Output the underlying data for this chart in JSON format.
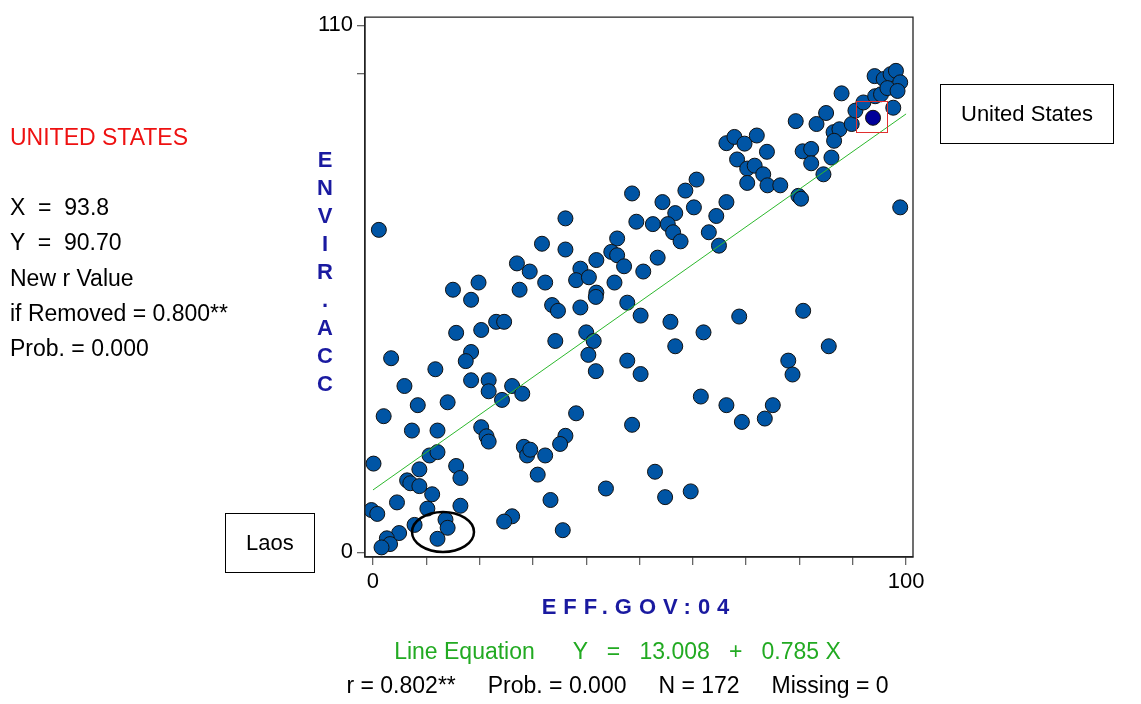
{
  "chart_data": {
    "type": "scatter",
    "xlabel": "EFF.GOV:04",
    "ylabel": "ENVIR.ACC",
    "xlim": [
      -1.5,
      101.3
    ],
    "ylim": [
      -1,
      111.7
    ],
    "xticks": [
      0,
      {
        "value": 10,
        "label": null
      },
      {
        "value": 20,
        "label": null
      },
      {
        "value": 30,
        "label": null
      },
      {
        "value": 40,
        "label": null
      },
      {
        "value": 50,
        "label": null
      },
      {
        "value": 60,
        "label": null
      },
      {
        "value": 70,
        "label": null
      },
      {
        "value": 80,
        "label": null
      },
      {
        "value": 90,
        "label": null
      },
      100
    ],
    "yticks": [
      0,
      {
        "value": 100,
        "label": null
      },
      110
    ],
    "grid": false,
    "legend": false,
    "marker": "circle",
    "series": [
      {
        "color": "#0055a5",
        "x": [
          1.1,
          48.6,
          36.1,
          49.4,
          31.7,
          36.1,
          45.8,
          44.7,
          45.8,
          47.1,
          41.9,
          27.0,
          29.4,
          38.9,
          38.1,
          40.5,
          32.3,
          45.3,
          19.8,
          15.0,
          27.5,
          41.9,
          50.7,
          60.7,
          58.6,
          54.3,
          56.7,
          60.2,
          66.3,
          64.4,
          52.5,
          55.3,
          56.3,
          57.7,
          63.0,
          64.9,
          53.4,
          66.3,
          67.8,
          69.7,
          72.0,
          73.9,
          68.3,
          70.2,
          71.6,
          73.2,
          70.2,
          74.0,
          76.4,
          79.3,
          83.2,
          85.0,
          87.9,
          80.6,
          82.2,
          82.2,
          86.0,
          84.5,
          79.8,
          80.3,
          86.4,
          87.5,
          86.5,
          89.8,
          90.5,
          92.0,
          94.2,
          95.3,
          94.1,
          95.8,
          97.1,
          98.1,
          98.9,
          96.5,
          98.4,
          97.6,
          98.9,
          18.4,
          33.6,
          34.7,
          38.9,
          41.8,
          47.7,
          50.2,
          23.1,
          24.6,
          15.6,
          20.3,
          34.2,
          40.0,
          41.4,
          40.4,
          41.8,
          47.7,
          50.2,
          3.4,
          18.4,
          17.4,
          11.7,
          5.9,
          8.4,
          14.0,
          18.4,
          21.7,
          21.7,
          26.1,
          28.0,
          24.2,
          2.0,
          7.3,
          12.1,
          20.3,
          21.3,
          21.7,
          38.1,
          48.6,
          36.1,
          35.1,
          28.3,
          28.9,
          29.5,
          32.3,
          30.9,
          10.6,
          12.1,
          0.1,
          8.7,
          15.6,
          16.4,
          6.4,
          7.0,
          8.7,
          11.1,
          4.5,
          10.2,
          16.4,
          -0.3,
          0.8,
          33.3,
          43.7,
          26.1,
          24.6,
          35.6,
          7.8,
          13.6,
          14.0,
          12.1,
          4.9,
          2.6,
          3.2,
          1.6,
          55.8,
          68.7,
          80.7,
          62.0,
          56.7,
          85.5,
          77.9,
          78.7,
          61.5,
          66.3,
          69.2,
          73.5,
          75.0,
          52.9,
          54.8,
          59.6
        ],
        "values": [
          67.3,
          74.9,
          69.7,
          69.0,
          64.4,
          63.2,
          65.5,
          62.7,
          62.0,
          59.7,
          61.0,
          60.3,
          58.6,
          59.2,
          56.8,
          57.4,
          56.3,
          56.3,
          56.3,
          54.8,
          54.8,
          54.2,
          58.6,
          77.8,
          75.5,
          73.1,
          70.8,
          72.0,
          73.1,
          70.2,
          68.5,
          68.5,
          66.8,
          64.9,
          66.8,
          64.0,
          61.5,
          85.4,
          86.7,
          85.3,
          87.0,
          83.6,
          82.0,
          80.1,
          80.7,
          78.9,
          77.1,
          76.6,
          76.6,
          90.0,
          89.4,
          91.7,
          95.8,
          83.7,
          84.2,
          81.2,
          82.4,
          78.9,
          74.4,
          73.8,
          87.7,
          88.3,
          85.9,
          89.4,
          92.2,
          93.9,
          95.2,
          95.6,
          99.4,
          98.8,
          99.8,
          100.5,
          98.1,
          96.9,
          96.3,
          92.8,
          72.0,
          52.7,
          51.6,
          50.4,
          51.1,
          53.3,
          52.1,
          49.4,
          48.1,
          48.1,
          45.8,
          46.4,
          44.1,
          45.9,
          44.1,
          41.2,
          37.8,
          40.0,
          37.2,
          40.5,
          41.8,
          39.9,
          38.2,
          34.7,
          30.7,
          31.3,
          35.9,
          35.9,
          33.6,
          34.7,
          33.1,
          31.8,
          28.4,
          25.4,
          25.4,
          26.1,
          24.2,
          23.1,
          29.0,
          26.6,
          24.3,
          22.6,
          22.0,
          20.2,
          21.4,
          20.2,
          16.2,
          20.2,
          20.9,
          18.5,
          17.3,
          18.0,
          15.5,
          15.0,
          14.4,
          13.8,
          12.1,
          10.4,
          9.1,
          9.7,
          8.8,
          8.0,
          10.9,
          13.3,
          7.5,
          6.4,
          4.6,
          5.7,
          6.8,
          5.1,
          2.8,
          4.0,
          2.9,
          1.7,
          1.0,
          48.1,
          49.2,
          50.4,
          45.9,
          43.0,
          43.0,
          40.0,
          37.1,
          32.5,
          30.7,
          27.2,
          27.9,
          30.7,
          16.8,
          11.5,
          12.7
        ]
      },
      {
        "color": "#000099",
        "x": [
          93.8
        ],
        "values": [
          90.7
        ]
      },
      {
        "type": "line",
        "color": "#2db82d",
        "marker": "none",
        "x": [
          0,
          100
        ],
        "values": [
          13.0,
          91.5
        ]
      }
    ],
    "annotations": [
      "Laos",
      "United States",
      "UNITED STATES",
      "X  =  93.8",
      "Y  =  90.70",
      "New r Value",
      "if Removed = 0.800**",
      "Prob. = 0.000",
      "Line Equation      Y   =   13.008   +   0.785 X",
      "r = 0.802**     Prob. = 0.000     N = 172     Missing = 0"
    ]
  }
}
